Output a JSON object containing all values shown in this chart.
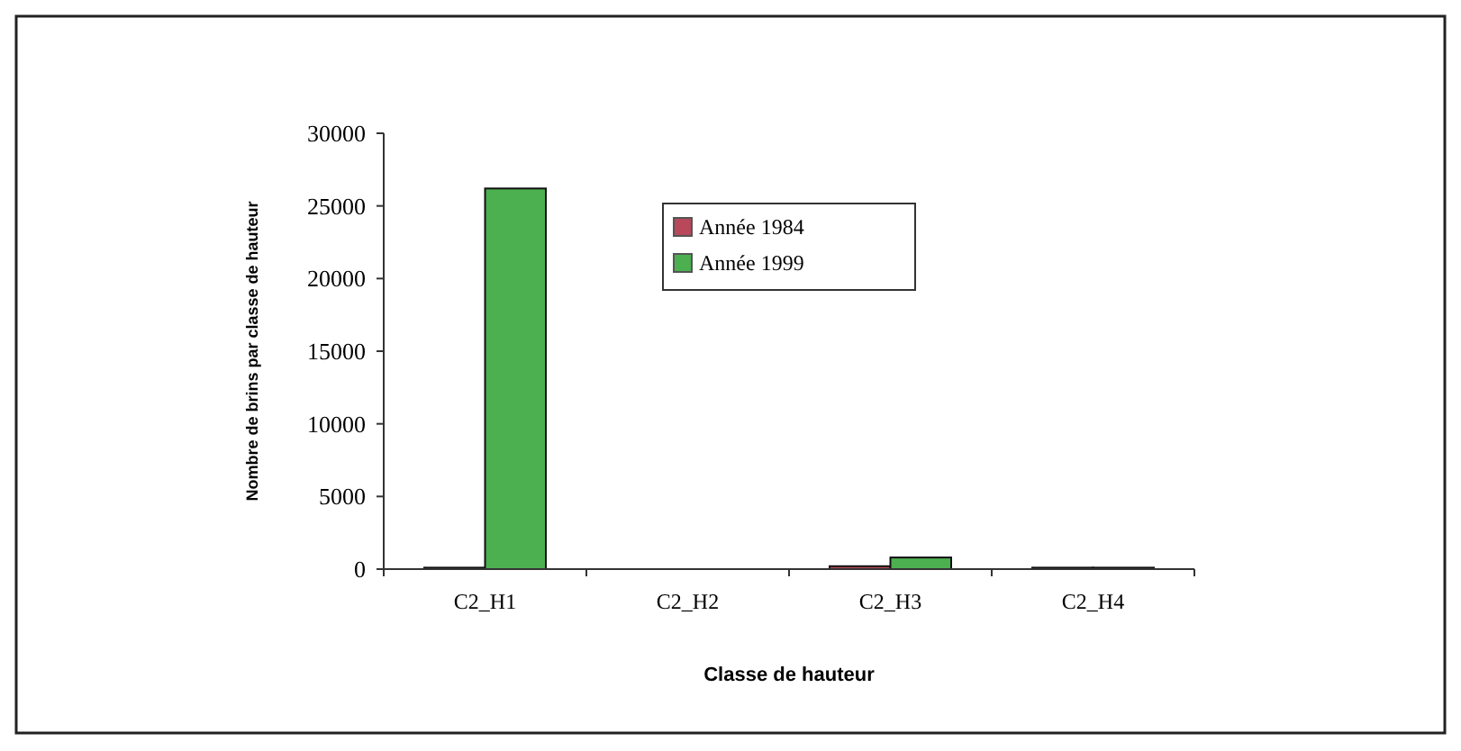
{
  "chart_data": {
    "type": "bar",
    "xlabel": "Classe de hauteur",
    "ylabel": "Nombre de brins par classe de hauteur",
    "categories": [
      "C2_H1",
      "C2_H2",
      "C2_H3",
      "C2_H4"
    ],
    "series": [
      {
        "name": "Année 1984",
        "color": "#b8485a",
        "values": [
          100,
          0,
          200,
          100
        ]
      },
      {
        "name": "Année 1999",
        "color": "#4caf50",
        "values": [
          26200,
          0,
          800,
          100
        ]
      }
    ],
    "ylim": [
      0,
      30000
    ],
    "yticks": [
      0,
      5000,
      10000,
      15000,
      20000,
      25000,
      30000
    ],
    "grid": false,
    "legend": "top"
  }
}
